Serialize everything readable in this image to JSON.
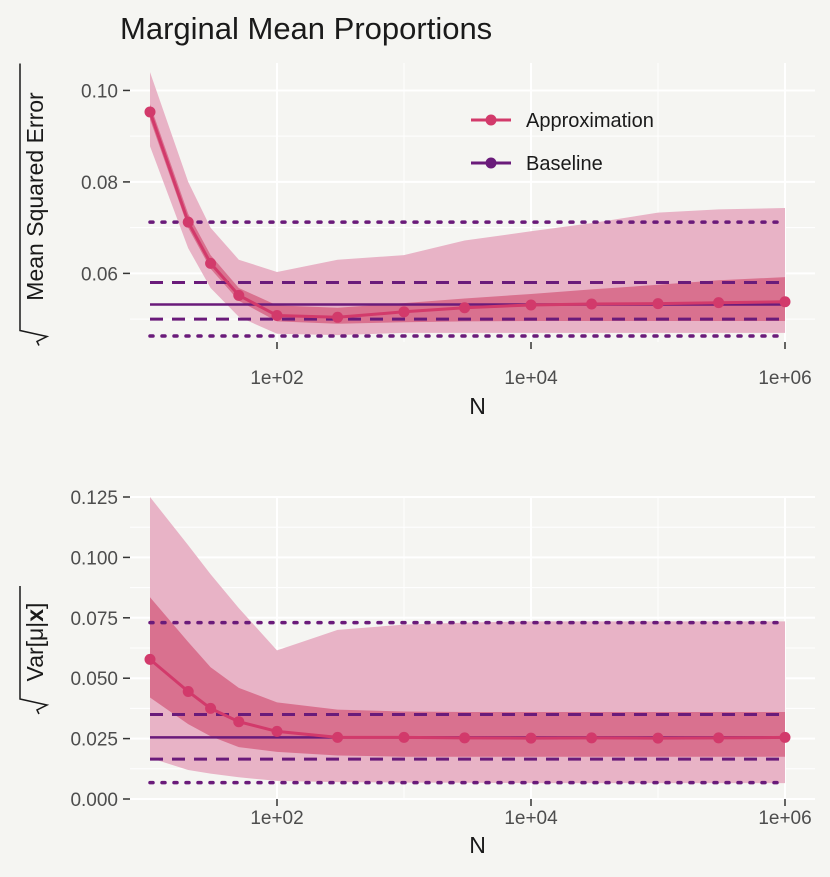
{
  "title": "Marginal Mean Proportions",
  "colors": {
    "approx": "#d23a6b",
    "baseline": "#6a1b7a",
    "band_outer": "#e8b3c6",
    "band_inner": "#d9718f",
    "background": "#f5f5f2",
    "grid": "#ffffff"
  },
  "legend": {
    "items": [
      {
        "label": "Approximation",
        "color_key": "approx"
      },
      {
        "label": "Baseline",
        "color_key": "baseline"
      }
    ]
  },
  "chart_data": [
    {
      "type": "line",
      "xlabel": "N",
      "ylabel_radicand": "Mean Squared Error",
      "x_scale": "log10",
      "xlim": [
        10,
        1000000
      ],
      "ylim": [
        0.045,
        0.106
      ],
      "yticks": [
        0.06,
        0.08,
        0.1
      ],
      "ytick_labels": [
        "0.06",
        "0.08",
        "0.10"
      ],
      "xticks": [
        100,
        10000,
        1000000
      ],
      "xtick_labels": [
        "1e+02",
        "1e+04",
        "1e+06"
      ],
      "approx": {
        "x": [
          10,
          20,
          30,
          50,
          100,
          300,
          1000,
          3000,
          10000,
          30000,
          100000,
          300000,
          1000000
        ],
        "mean": [
          0.0953,
          0.0712,
          0.0622,
          0.0552,
          0.0508,
          0.0504,
          0.0516,
          0.0525,
          0.0531,
          0.0533,
          0.0534,
          0.0536,
          0.0538
        ],
        "inner_lo": [
          0.0937,
          0.07,
          0.061,
          0.054,
          0.0495,
          0.049,
          0.0493,
          0.0495,
          0.0496,
          0.0496,
          0.0496,
          0.0496,
          0.0496
        ],
        "inner_hi": [
          0.097,
          0.073,
          0.064,
          0.0568,
          0.053,
          0.0525,
          0.0535,
          0.0545,
          0.0555,
          0.0565,
          0.0575,
          0.0585,
          0.0592
        ],
        "outer_lo": [
          0.0878,
          0.0655,
          0.0568,
          0.0505,
          0.0468,
          0.0465,
          0.047,
          0.047,
          0.047,
          0.047,
          0.047,
          0.047,
          0.047
        ],
        "outer_hi": [
          0.104,
          0.08,
          0.07,
          0.063,
          0.0603,
          0.063,
          0.064,
          0.0672,
          0.0692,
          0.071,
          0.0733,
          0.074,
          0.0743
        ]
      },
      "baseline": {
        "mean": 0.0532,
        "dashed": [
          0.05,
          0.058
        ],
        "dotted": [
          0.0463,
          0.0712
        ]
      }
    },
    {
      "type": "line",
      "xlabel": "N",
      "ylabel_radicand": "Var[μ|x]",
      "x_scale": "log10",
      "xlim": [
        10,
        1000000
      ],
      "ylim": [
        0,
        0.125
      ],
      "yticks": [
        0,
        0.025,
        0.05,
        0.075,
        0.1,
        0.125
      ],
      "ytick_labels": [
        "0.000",
        "0.025",
        "0.050",
        "0.075",
        "0.100",
        "0.125"
      ],
      "xticks": [
        100,
        10000,
        1000000
      ],
      "xtick_labels": [
        "1e+02",
        "1e+04",
        "1e+06"
      ],
      "approx": {
        "x": [
          10,
          20,
          30,
          50,
          100,
          300,
          1000,
          3000,
          10000,
          30000,
          100000,
          300000,
          1000000
        ],
        "mean": [
          0.0578,
          0.0445,
          0.0375,
          0.032,
          0.028,
          0.0255,
          0.0255,
          0.0253,
          0.0252,
          0.0253,
          0.0252,
          0.0253,
          0.0255
        ],
        "inner_lo": [
          0.042,
          0.031,
          0.026,
          0.0215,
          0.0195,
          0.018,
          0.0175,
          0.0175,
          0.0175,
          0.0175,
          0.0175,
          0.0175,
          0.0175
        ],
        "inner_hi": [
          0.0835,
          0.065,
          0.0545,
          0.046,
          0.04,
          0.037,
          0.0362,
          0.036,
          0.036,
          0.036,
          0.036,
          0.036,
          0.036
        ],
        "outer_lo": [
          0.017,
          0.012,
          0.0105,
          0.009,
          0.0075,
          0.007,
          0.0068,
          0.0067,
          0.0066,
          0.0066,
          0.0066,
          0.0066,
          0.0066
        ],
        "outer_hi": [
          0.125,
          0.105,
          0.093,
          0.079,
          0.0615,
          0.07,
          0.0722,
          0.073,
          0.0735,
          0.0735,
          0.0735,
          0.0735,
          0.0735
        ]
      },
      "baseline": {
        "mean": 0.0255,
        "dashed": [
          0.0165,
          0.035
        ],
        "dotted": [
          0.0068,
          0.073
        ]
      }
    }
  ]
}
